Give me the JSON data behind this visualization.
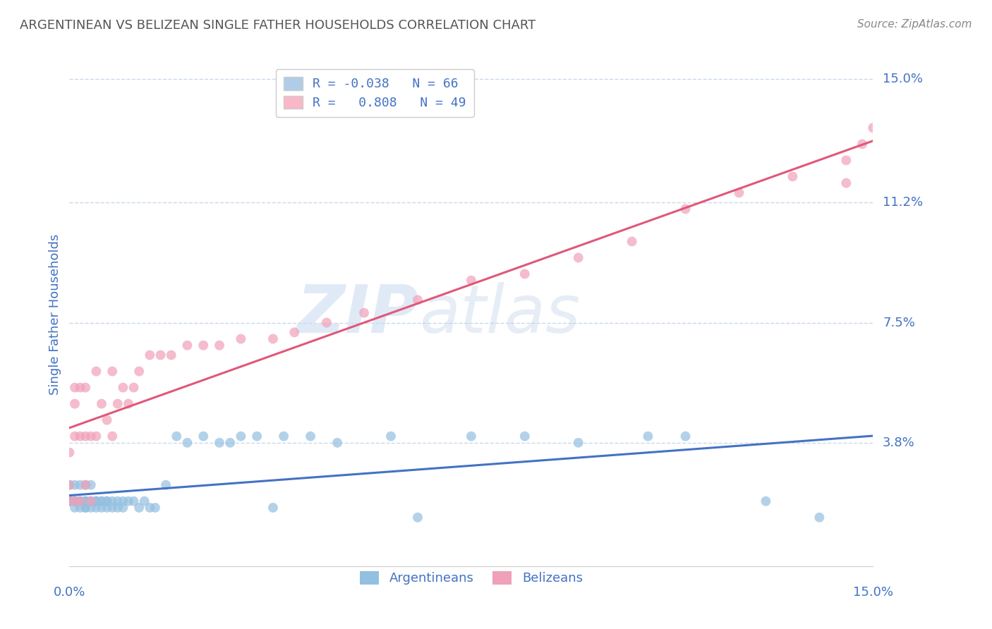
{
  "title": "ARGENTINEAN VS BELIZEAN SINGLE FATHER HOUSEHOLDS CORRELATION CHART",
  "source": "Source: ZipAtlas.com",
  "ylabel": "Single Father Households",
  "ytick_labels": [
    "15.0%",
    "11.2%",
    "7.5%",
    "3.8%"
  ],
  "ytick_values": [
    0.15,
    0.112,
    0.075,
    0.038
  ],
  "xmin": 0.0,
  "xmax": 0.15,
  "ymin": 0.0,
  "ymax": 0.155,
  "watermark_zip": "ZIP",
  "watermark_atlas": "atlas",
  "argentinean_color": "#93c0e0",
  "belizean_color": "#f0a0b8",
  "argentinean_line_color": "#4472c4",
  "belizean_line_color": "#e05878",
  "background_color": "#ffffff",
  "title_color": "#555555",
  "axis_label_color": "#4472c4",
  "grid_color": "#c8d8ec",
  "legend_box_blue": "#b0cce8",
  "legend_box_pink": "#f8b8c8",
  "legend_text_color": "#4472c4",
  "source_color": "#888888",
  "argentinean_R": -0.038,
  "argentinean_N": 66,
  "belizean_R": 0.808,
  "belizean_N": 49,
  "argentinean_x": [
    0.0,
    0.0,
    0.0,
    0.0,
    0.001,
    0.001,
    0.001,
    0.001,
    0.001,
    0.002,
    0.002,
    0.002,
    0.002,
    0.003,
    0.003,
    0.003,
    0.003,
    0.003,
    0.003,
    0.004,
    0.004,
    0.004,
    0.004,
    0.005,
    0.005,
    0.005,
    0.005,
    0.006,
    0.006,
    0.006,
    0.007,
    0.007,
    0.007,
    0.008,
    0.008,
    0.009,
    0.009,
    0.01,
    0.01,
    0.011,
    0.012,
    0.013,
    0.014,
    0.015,
    0.016,
    0.018,
    0.02,
    0.022,
    0.025,
    0.028,
    0.03,
    0.032,
    0.035,
    0.038,
    0.04,
    0.045,
    0.05,
    0.06,
    0.065,
    0.075,
    0.085,
    0.095,
    0.108,
    0.115,
    0.13,
    0.14
  ],
  "argentinean_y": [
    0.02,
    0.02,
    0.02,
    0.025,
    0.018,
    0.02,
    0.02,
    0.02,
    0.025,
    0.018,
    0.02,
    0.02,
    0.025,
    0.018,
    0.018,
    0.02,
    0.02,
    0.02,
    0.025,
    0.018,
    0.02,
    0.02,
    0.025,
    0.018,
    0.02,
    0.02,
    0.02,
    0.018,
    0.02,
    0.02,
    0.018,
    0.02,
    0.02,
    0.018,
    0.02,
    0.018,
    0.02,
    0.018,
    0.02,
    0.02,
    0.02,
    0.018,
    0.02,
    0.018,
    0.018,
    0.025,
    0.04,
    0.038,
    0.04,
    0.038,
    0.038,
    0.04,
    0.04,
    0.018,
    0.04,
    0.04,
    0.038,
    0.04,
    0.015,
    0.04,
    0.04,
    0.038,
    0.04,
    0.04,
    0.02,
    0.015
  ],
  "belizean_x": [
    0.0,
    0.0,
    0.0,
    0.001,
    0.001,
    0.001,
    0.001,
    0.002,
    0.002,
    0.002,
    0.003,
    0.003,
    0.003,
    0.004,
    0.004,
    0.005,
    0.005,
    0.006,
    0.007,
    0.008,
    0.008,
    0.009,
    0.01,
    0.011,
    0.012,
    0.013,
    0.015,
    0.017,
    0.019,
    0.022,
    0.025,
    0.028,
    0.032,
    0.038,
    0.042,
    0.048,
    0.055,
    0.065,
    0.075,
    0.085,
    0.095,
    0.105,
    0.115,
    0.125,
    0.135,
    0.145,
    0.145,
    0.148,
    0.15
  ],
  "belizean_y": [
    0.02,
    0.025,
    0.035,
    0.02,
    0.04,
    0.05,
    0.055,
    0.02,
    0.04,
    0.055,
    0.025,
    0.04,
    0.055,
    0.02,
    0.04,
    0.04,
    0.06,
    0.05,
    0.045,
    0.04,
    0.06,
    0.05,
    0.055,
    0.05,
    0.055,
    0.06,
    0.065,
    0.065,
    0.065,
    0.068,
    0.068,
    0.068,
    0.07,
    0.07,
    0.072,
    0.075,
    0.078,
    0.082,
    0.088,
    0.09,
    0.095,
    0.1,
    0.11,
    0.115,
    0.12,
    0.118,
    0.125,
    0.13,
    0.135
  ]
}
